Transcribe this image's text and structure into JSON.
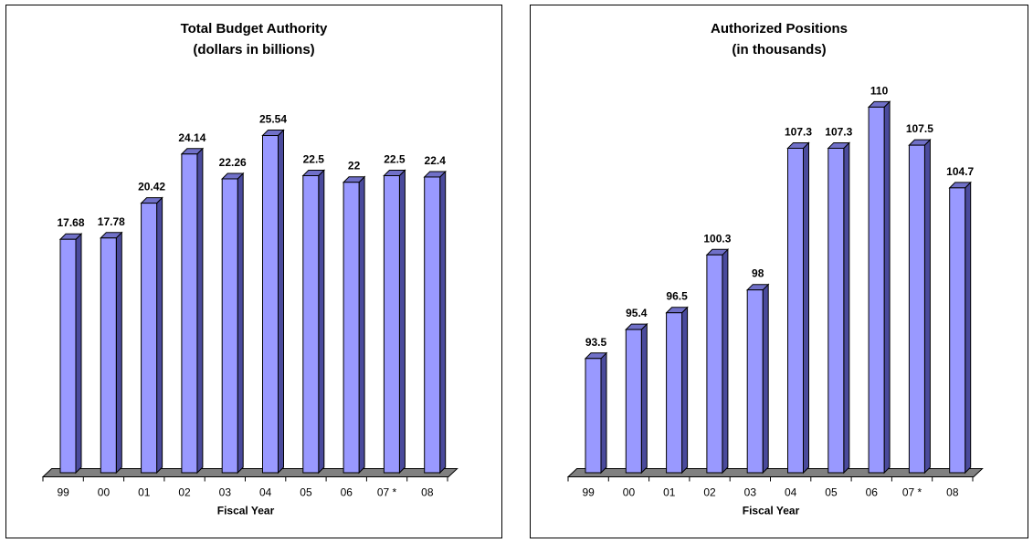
{
  "colors": {
    "bar_front": "#9999ff",
    "bar_side": "#4a4a9c",
    "bar_top": "#7070c8",
    "floor": "#808080",
    "outline": "#000000"
  },
  "chart_data": [
    {
      "type": "bar",
      "title_lines": [
        "Total Budget Authority",
        "(dollars in billions)"
      ],
      "xlabel": "Fiscal Year",
      "ylabel": "",
      "categories": [
        "99",
        "00",
        "01",
        "02",
        "03",
        "04",
        "05",
        "06",
        "07 *",
        "08"
      ],
      "values": [
        17.68,
        17.78,
        20.42,
        24.14,
        22.26,
        25.54,
        22.5,
        22,
        22.5,
        22.4
      ],
      "value_labels": [
        "17.68",
        "17.78",
        "20.42",
        "24.14",
        "22.26",
        "25.54",
        "22.5",
        "22",
        "22.5",
        "22.4"
      ],
      "ylim": [
        0,
        30
      ],
      "grid": false,
      "legend": "none",
      "style": "3d-column"
    },
    {
      "type": "bar",
      "title_lines": [
        "Authorized Positions",
        "(in thousands)"
      ],
      "xlabel": "Fiscal Year",
      "ylabel": "",
      "categories": [
        "99",
        "00",
        "01",
        "02",
        "03",
        "04",
        "05",
        "06",
        "07 *",
        "08"
      ],
      "values": [
        93.5,
        95.4,
        96.5,
        100.3,
        98,
        107.3,
        107.3,
        110,
        107.5,
        104.7
      ],
      "value_labels": [
        "93.5",
        "95.4",
        "96.5",
        "100.3",
        "98",
        "107.3",
        "107.3",
        "110",
        "107.5",
        "104.7"
      ],
      "ylim": [
        86,
        112
      ],
      "grid": false,
      "legend": "none",
      "style": "3d-column"
    }
  ]
}
